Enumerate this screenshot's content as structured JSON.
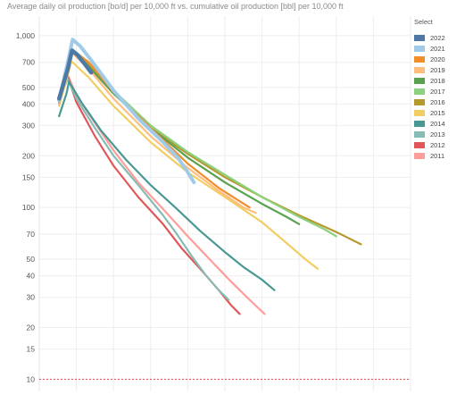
{
  "title": "Average daily oil production [bo/d] per 10,000 ft vs. cumulative oil production [bbl] per 10,000 ft",
  "legend": {
    "title": "Select"
  },
  "chart_data": {
    "type": "line",
    "title": "Average daily oil production [bo/d] per 10,000 ft vs. cumulative oil production [bbl] per 10,000 ft",
    "xlabel": "",
    "ylabel": "",
    "yscale": "log",
    "ylim": [
      8.5,
      1300
    ],
    "yticks": [
      10,
      15,
      20,
      30,
      40,
      50,
      70,
      100,
      150,
      200,
      300,
      400,
      500,
      700,
      1000
    ],
    "ytick_labels": [
      "10",
      "15",
      "20",
      "30",
      "40",
      "50",
      "70",
      "100",
      "150",
      "200",
      "300",
      "400",
      "500",
      "700",
      "1,000"
    ],
    "x_tick_labels_visible": false,
    "grid": true,
    "legend_position": "right",
    "reference_line": {
      "y": 10,
      "color": "#e05a5a",
      "style": "dotted"
    },
    "series": [
      {
        "name": "2022",
        "color": "#4e79a7",
        "points": [
          [
            0.16,
            430
          ],
          [
            0.23,
            640
          ],
          [
            0.265,
            820
          ],
          [
            0.31,
            770
          ],
          [
            0.37,
            680
          ],
          [
            0.42,
            610
          ]
        ]
      },
      {
        "name": "2021",
        "color": "#a0cbe8",
        "points": [
          [
            0.16,
            420
          ],
          [
            0.23,
            700
          ],
          [
            0.27,
            950
          ],
          [
            0.33,
            870
          ],
          [
            0.42,
            720
          ],
          [
            0.6,
            480
          ],
          [
            0.8,
            330
          ],
          [
            1.0,
            240
          ],
          [
            1.12,
            195
          ],
          [
            1.2,
            160
          ],
          [
            1.25,
            140
          ]
        ]
      },
      {
        "name": "2020",
        "color": "#f28e2b",
        "points": [
          [
            0.16,
            410
          ],
          [
            0.23,
            650
          ],
          [
            0.27,
            820
          ],
          [
            0.4,
            700
          ],
          [
            0.6,
            470
          ],
          [
            0.9,
            290
          ],
          [
            1.2,
            180
          ],
          [
            1.45,
            130
          ],
          [
            1.7,
            100
          ]
        ]
      },
      {
        "name": "2019",
        "color": "#ffbe7d",
        "points": [
          [
            0.16,
            400
          ],
          [
            0.23,
            640
          ],
          [
            0.27,
            790
          ],
          [
            0.4,
            640
          ],
          [
            0.6,
            430
          ],
          [
            0.9,
            260
          ],
          [
            1.2,
            170
          ],
          [
            1.45,
            125
          ],
          [
            1.65,
            100
          ],
          [
            1.75,
            93
          ]
        ]
      },
      {
        "name": "2018",
        "color": "#59a14f",
        "points": [
          [
            0.16,
            400
          ],
          [
            0.23,
            620
          ],
          [
            0.27,
            800
          ],
          [
            0.4,
            660
          ],
          [
            0.6,
            460
          ],
          [
            0.9,
            290
          ],
          [
            1.2,
            195
          ],
          [
            1.5,
            140
          ],
          [
            1.8,
            105
          ],
          [
            2.0,
            88
          ],
          [
            2.1,
            80
          ]
        ]
      },
      {
        "name": "2017",
        "color": "#8cd17d",
        "points": [
          [
            0.16,
            420
          ],
          [
            0.23,
            650
          ],
          [
            0.27,
            830
          ],
          [
            0.4,
            700
          ],
          [
            0.6,
            480
          ],
          [
            0.9,
            300
          ],
          [
            1.2,
            210
          ],
          [
            1.5,
            155
          ],
          [
            1.8,
            115
          ],
          [
            2.1,
            88
          ],
          [
            2.3,
            75
          ],
          [
            2.4,
            68
          ]
        ]
      },
      {
        "name": "2016",
        "color": "#b6992d",
        "points": [
          [
            0.16,
            410
          ],
          [
            0.23,
            640
          ],
          [
            0.27,
            820
          ],
          [
            0.4,
            680
          ],
          [
            0.6,
            470
          ],
          [
            0.9,
            290
          ],
          [
            1.2,
            205
          ],
          [
            1.5,
            150
          ],
          [
            1.8,
            115
          ],
          [
            2.1,
            90
          ],
          [
            2.4,
            72
          ],
          [
            2.6,
            61
          ]
        ]
      },
      {
        "name": "2015",
        "color": "#f1ce63",
        "points": [
          [
            0.16,
            390
          ],
          [
            0.23,
            590
          ],
          [
            0.26,
            710
          ],
          [
            0.4,
            570
          ],
          [
            0.6,
            390
          ],
          [
            0.9,
            240
          ],
          [
            1.2,
            160
          ],
          [
            1.5,
            115
          ],
          [
            1.8,
            82
          ],
          [
            2.0,
            62
          ],
          [
            2.15,
            50
          ],
          [
            2.25,
            44
          ]
        ]
      },
      {
        "name": "2014",
        "color": "#499894",
        "points": [
          [
            0.16,
            340
          ],
          [
            0.22,
            460
          ],
          [
            0.24,
            540
          ],
          [
            0.35,
            400
          ],
          [
            0.5,
            280
          ],
          [
            0.7,
            190
          ],
          [
            0.9,
            135
          ],
          [
            1.1,
            100
          ],
          [
            1.3,
            73
          ],
          [
            1.5,
            55
          ],
          [
            1.65,
            45
          ],
          [
            1.8,
            38
          ],
          [
            1.9,
            33
          ]
        ]
      },
      {
        "name": "2013",
        "color": "#86bcb6",
        "points": [
          [
            0.2,
            500
          ],
          [
            0.23,
            560
          ],
          [
            0.3,
            430
          ],
          [
            0.45,
            290
          ],
          [
            0.6,
            200
          ],
          [
            0.8,
            135
          ],
          [
            1.0,
            90
          ],
          [
            1.1,
            72
          ],
          [
            1.25,
            50
          ],
          [
            1.35,
            40
          ],
          [
            1.45,
            33
          ],
          [
            1.53,
            29
          ]
        ]
      },
      {
        "name": "2012",
        "color": "#e15759",
        "points": [
          [
            0.2,
            520
          ],
          [
            0.23,
            580
          ],
          [
            0.3,
            410
          ],
          [
            0.45,
            260
          ],
          [
            0.6,
            175
          ],
          [
            0.8,
            115
          ],
          [
            1.0,
            80
          ],
          [
            1.15,
            58
          ],
          [
            1.3,
            44
          ],
          [
            1.45,
            33
          ],
          [
            1.55,
            27
          ],
          [
            1.62,
            24
          ]
        ]
      },
      {
        "name": "2011",
        "color": "#ff9d9a",
        "points": [
          [
            0.2,
            530
          ],
          [
            0.23,
            590
          ],
          [
            0.3,
            450
          ],
          [
            0.45,
            310
          ],
          [
            0.6,
            215
          ],
          [
            0.8,
            140
          ],
          [
            1.0,
            98
          ],
          [
            1.2,
            68
          ],
          [
            1.4,
            48
          ],
          [
            1.55,
            37
          ],
          [
            1.7,
            29
          ],
          [
            1.82,
            24
          ]
        ]
      }
    ]
  }
}
